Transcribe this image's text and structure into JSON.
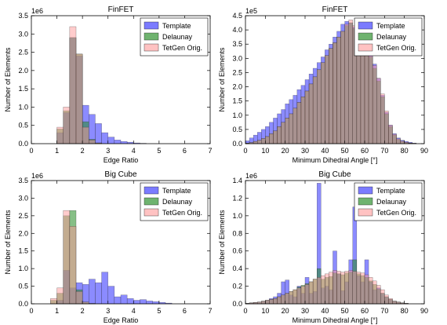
{
  "colors": {
    "template": "#6464ff",
    "delaunay": "#228b22",
    "tetgen": "#ff9999"
  },
  "chart_data": [
    {
      "type": "bar",
      "title": "FinFET",
      "xlabel": "Edge Ratio",
      "ylabel": "Number of Elements",
      "exponent_label": "1e6",
      "xlim": [
        0,
        7
      ],
      "ylim": [
        0,
        3.5
      ],
      "xticks": [
        "0",
        "1",
        "2",
        "3",
        "4",
        "5",
        "6",
        "7"
      ],
      "yticks": [
        "0.0",
        "0.5",
        "1.0",
        "1.5",
        "2.0",
        "2.5",
        "3.0",
        "3.5"
      ],
      "bin_width": 0.25,
      "legend_position": "top-right",
      "series": [
        {
          "name": "Template",
          "x": [
            1.0,
            1.25,
            1.5,
            1.75,
            2.0,
            2.25,
            2.5,
            2.75,
            3.0,
            3.25,
            3.5,
            3.75,
            4.0,
            4.25
          ],
          "values": [
            0.3,
            0.85,
            2.9,
            2.4,
            1.05,
            0.8,
            0.55,
            0.3,
            0.18,
            0.1,
            0.06,
            0.04,
            0.02,
            0.01
          ]
        },
        {
          "name": "Delaunay",
          "x": [
            1.0,
            1.25,
            1.5,
            1.75,
            2.0,
            2.25,
            2.5
          ],
          "values": [
            0.4,
            0.9,
            2.9,
            2.45,
            0.6,
            0.12,
            0.02
          ]
        },
        {
          "name": "TetGen Orig.",
          "x": [
            1.0,
            1.25,
            1.5,
            1.75,
            2.0,
            2.25,
            2.5
          ],
          "values": [
            0.45,
            1.0,
            3.2,
            2.45,
            0.45,
            0.1,
            0.02
          ]
        }
      ]
    },
    {
      "type": "bar",
      "title": "FinFET",
      "xlabel": "Minimum Dihedral Angle [°]",
      "ylabel": "Number of Elements",
      "exponent_label": "1e5",
      "xlim": [
        0,
        90
      ],
      "ylim": [
        0,
        4.5
      ],
      "xticks": [
        "0",
        "10",
        "20",
        "30",
        "40",
        "50",
        "60",
        "70",
        "80",
        "90"
      ],
      "yticks": [
        "0.0",
        "0.5",
        "1.0",
        "1.5",
        "2.0",
        "2.5",
        "3.0",
        "3.5",
        "4.0",
        "4.5"
      ],
      "bin_width": 2,
      "legend_position": "top-right",
      "series": [
        {
          "name": "Template",
          "x": [
            0,
            2,
            4,
            6,
            8,
            10,
            12,
            14,
            16,
            18,
            20,
            22,
            24,
            26,
            28,
            30,
            32,
            34,
            36,
            38,
            40,
            42,
            44,
            46,
            48,
            50,
            52,
            54,
            56,
            58,
            60,
            62,
            64,
            66,
            68,
            70,
            72,
            74,
            76,
            78,
            80,
            82,
            84
          ],
          "values": [
            0.1,
            0.2,
            0.3,
            0.4,
            0.5,
            0.6,
            0.75,
            0.9,
            1.05,
            1.2,
            1.4,
            1.55,
            1.7,
            1.9,
            2.05,
            2.25,
            2.45,
            2.65,
            2.85,
            3.05,
            3.3,
            3.5,
            3.75,
            3.95,
            4.2,
            4.3,
            4.25,
            4.1,
            3.95,
            3.8,
            3.5,
            3.2,
            2.8,
            2.3,
            1.7,
            1.1,
            0.65,
            0.35,
            0.2,
            0.12,
            0.08,
            0.05,
            0.02
          ]
        },
        {
          "name": "Delaunay",
          "x": [
            0,
            2,
            4,
            6,
            8,
            10,
            12,
            14,
            16,
            18,
            20,
            22,
            24,
            26,
            28,
            30,
            32,
            34,
            36,
            38,
            40,
            42,
            44,
            46,
            48,
            50,
            52,
            54,
            56,
            58,
            60,
            62,
            64,
            66,
            68,
            70,
            72,
            74,
            76,
            78,
            80,
            82,
            84
          ],
          "values": [
            0.02,
            0.04,
            0.08,
            0.12,
            0.18,
            0.25,
            0.35,
            0.45,
            0.6,
            0.75,
            0.9,
            1.05,
            1.25,
            1.45,
            1.65,
            1.85,
            2.1,
            2.35,
            2.6,
            2.85,
            3.1,
            3.35,
            3.55,
            3.75,
            3.95,
            4.15,
            4.25,
            4.05,
            3.85,
            3.7,
            3.4,
            3.05,
            2.65,
            2.2,
            1.65,
            1.05,
            0.6,
            0.3,
            0.15,
            0.08,
            0.04,
            0.02,
            0.01
          ]
        },
        {
          "name": "TetGen Orig.",
          "x": [
            0,
            2,
            4,
            6,
            8,
            10,
            12,
            14,
            16,
            18,
            20,
            22,
            24,
            26,
            28,
            30,
            32,
            34,
            36,
            38,
            40,
            42,
            44,
            46,
            48,
            50,
            52,
            54,
            56,
            58,
            60,
            62,
            64,
            66,
            68,
            70,
            72,
            74,
            76,
            78,
            80,
            82,
            84
          ],
          "values": [
            0.02,
            0.04,
            0.08,
            0.12,
            0.18,
            0.25,
            0.35,
            0.45,
            0.6,
            0.75,
            0.9,
            1.05,
            1.25,
            1.45,
            1.65,
            1.85,
            2.1,
            2.35,
            2.6,
            2.85,
            3.1,
            3.35,
            3.55,
            3.75,
            3.95,
            4.2,
            4.35,
            4.15,
            3.95,
            3.8,
            3.5,
            3.15,
            2.75,
            2.3,
            1.75,
            1.15,
            0.65,
            0.33,
            0.17,
            0.09,
            0.05,
            0.02,
            0.01
          ]
        }
      ]
    },
    {
      "type": "bar",
      "title": "Big Cube",
      "xlabel": "Edge Ratio",
      "ylabel": "Number of Elements",
      "exponent_label": "1e6",
      "xlim": [
        0,
        7
      ],
      "ylim": [
        0,
        3.5
      ],
      "xticks": [
        "0",
        "1",
        "2",
        "3",
        "4",
        "5",
        "6",
        "7"
      ],
      "yticks": [
        "0.0",
        "0.5",
        "1.0",
        "1.5",
        "2.0",
        "2.5",
        "3.0",
        "3.5"
      ],
      "bin_width": 0.25,
      "legend_position": "top-right",
      "series": [
        {
          "name": "Template",
          "x": [
            1.0,
            1.25,
            1.5,
            1.75,
            2.0,
            2.25,
            2.5,
            2.75,
            3.0,
            3.25,
            3.5,
            3.75,
            4.0,
            4.25,
            4.5,
            4.75,
            5.0,
            5.25
          ],
          "values": [
            0.1,
            0.95,
            0.45,
            0.6,
            0.55,
            0.7,
            0.6,
            0.9,
            0.5,
            0.2,
            0.25,
            0.15,
            0.1,
            0.12,
            0.08,
            0.06,
            0.04,
            0.02
          ]
        },
        {
          "name": "Delaunay",
          "x": [
            0.75,
            1.0,
            1.25,
            1.5,
            1.75,
            2.0,
            2.25
          ],
          "values": [
            0.1,
            0.3,
            2.5,
            2.65,
            0.4,
            0.05,
            0.01
          ]
        },
        {
          "name": "TetGen Orig.",
          "x": [
            0.75,
            1.0,
            1.25,
            1.5,
            1.75,
            2.0,
            2.25
          ],
          "values": [
            0.15,
            0.45,
            2.65,
            2.2,
            0.35,
            0.05,
            0.01
          ]
        }
      ]
    },
    {
      "type": "bar",
      "title": "Big Cube",
      "xlabel": "Minimum Dihedral Angle [°]",
      "ylabel": "Number of Elements",
      "exponent_label": "1e6",
      "xlim": [
        0,
        90
      ],
      "ylim": [
        0,
        1.4
      ],
      "xticks": [
        "0",
        "10",
        "20",
        "30",
        "40",
        "50",
        "60",
        "70",
        "80",
        "90"
      ],
      "yticks": [
        "0.0",
        "0.2",
        "0.4",
        "0.6",
        "0.8",
        "1.0",
        "1.2",
        "1.4"
      ],
      "bin_width": 2,
      "legend_position": "top-right",
      "series": [
        {
          "name": "Template",
          "x": [
            0,
            2,
            4,
            6,
            8,
            10,
            12,
            14,
            16,
            18,
            20,
            22,
            24,
            26,
            28,
            30,
            32,
            34,
            36,
            38,
            40,
            42,
            44,
            46,
            48,
            50,
            52,
            54,
            56,
            58,
            60,
            62,
            64,
            66,
            68,
            70,
            72,
            74,
            76,
            78,
            80
          ],
          "values": [
            0.005,
            0.01,
            0.015,
            0.02,
            0.03,
            0.04,
            0.06,
            0.08,
            0.12,
            0.25,
            0.27,
            0.1,
            0.08,
            0.2,
            0.12,
            0.3,
            0.12,
            0.14,
            1.37,
            0.18,
            0.2,
            0.16,
            0.6,
            0.34,
            0.15,
            0.25,
            0.5,
            1.1,
            0.32,
            0.25,
            0.5,
            0.25,
            0.16,
            0.18,
            0.12,
            0.08,
            0.05,
            0.03,
            0.02,
            0.01,
            0.005
          ]
        },
        {
          "name": "Delaunay",
          "x": [
            0,
            2,
            4,
            6,
            8,
            10,
            12,
            14,
            16,
            18,
            20,
            22,
            24,
            26,
            28,
            30,
            32,
            34,
            36,
            38,
            40,
            42,
            44,
            46,
            48,
            50,
            52,
            54,
            56,
            58,
            60,
            62,
            64,
            66,
            68,
            70,
            72,
            74,
            76,
            78,
            80
          ],
          "values": [
            0.005,
            0.01,
            0.015,
            0.02,
            0.03,
            0.04,
            0.05,
            0.06,
            0.08,
            0.1,
            0.12,
            0.14,
            0.16,
            0.19,
            0.21,
            0.23,
            0.25,
            0.28,
            0.4,
            0.28,
            0.3,
            0.31,
            0.35,
            0.34,
            0.33,
            0.35,
            0.36,
            0.5,
            0.34,
            0.32,
            0.3,
            0.26,
            0.22,
            0.17,
            0.12,
            0.08,
            0.05,
            0.03,
            0.02,
            0.01,
            0.005
          ]
        },
        {
          "name": "TetGen Orig.",
          "x": [
            0,
            2,
            4,
            6,
            8,
            10,
            12,
            14,
            16,
            18,
            20,
            22,
            24,
            26,
            28,
            30,
            32,
            34,
            36,
            38,
            40,
            42,
            44,
            46,
            48,
            50,
            52,
            54,
            56,
            58,
            60,
            62,
            64,
            66,
            68,
            70,
            72,
            74,
            76,
            78,
            80
          ],
          "values": [
            0.005,
            0.01,
            0.015,
            0.02,
            0.03,
            0.04,
            0.05,
            0.06,
            0.08,
            0.1,
            0.12,
            0.14,
            0.16,
            0.18,
            0.2,
            0.22,
            0.25,
            0.28,
            0.3,
            0.32,
            0.34,
            0.36,
            0.38,
            0.37,
            0.36,
            0.37,
            0.38,
            0.37,
            0.36,
            0.35,
            0.33,
            0.3,
            0.26,
            0.21,
            0.16,
            0.1,
            0.06,
            0.03,
            0.02,
            0.01,
            0.005
          ]
        }
      ]
    }
  ]
}
